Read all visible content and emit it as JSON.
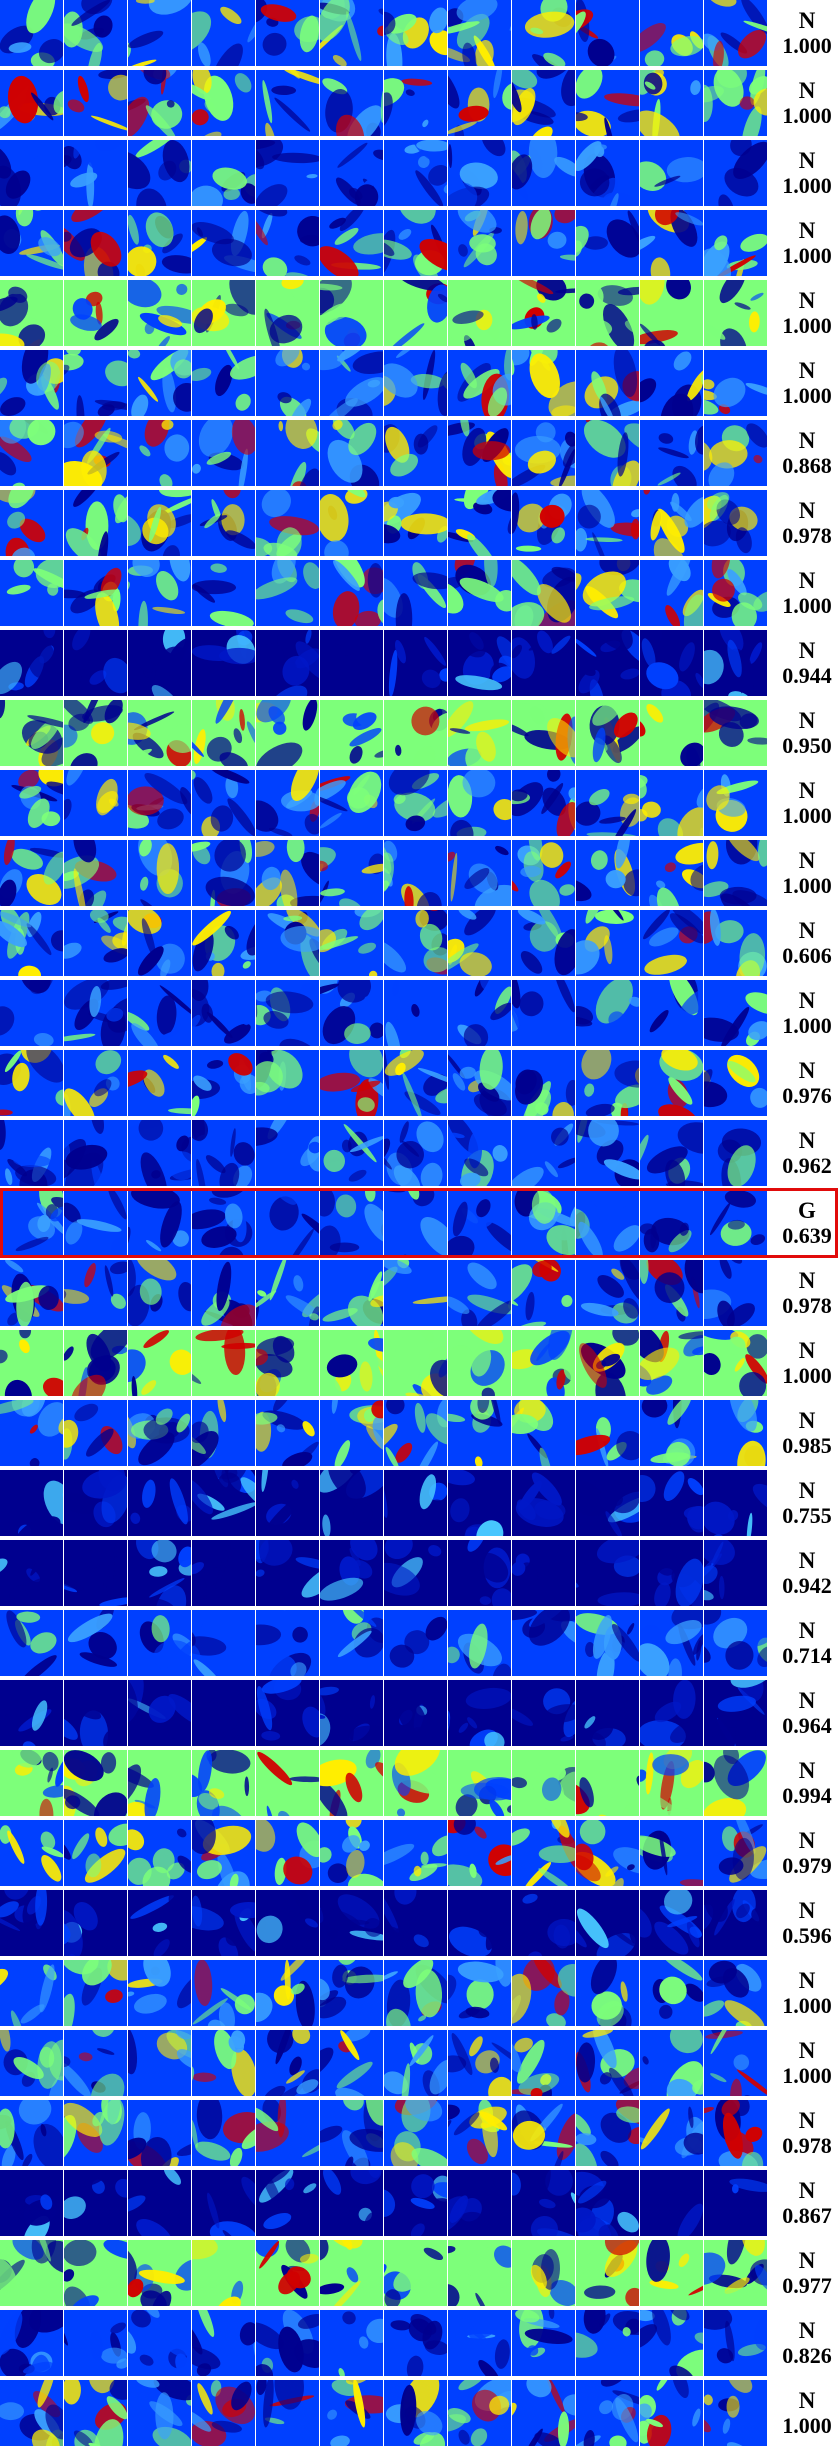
{
  "colormap": {
    "low": "#00008f",
    "mid_low": "#0040ff",
    "mid": "#7dff7a",
    "mid_high": "#ffee00",
    "high": "#d10000"
  },
  "highlight_color": "#e10b0b",
  "tiles_per_row": 12,
  "rows": [
    {
      "cls": "N",
      "score": "1.000",
      "pattern": "mixed",
      "highlighted": false
    },
    {
      "cls": "N",
      "score": "1.000",
      "pattern": "mixed",
      "highlighted": false
    },
    {
      "cls": "N",
      "score": "1.000",
      "pattern": "blue",
      "highlighted": false
    },
    {
      "cls": "N",
      "score": "1.000",
      "pattern": "mixed",
      "highlighted": false
    },
    {
      "cls": "N",
      "score": "1.000",
      "pattern": "green",
      "highlighted": false
    },
    {
      "cls": "N",
      "score": "1.000",
      "pattern": "mixed",
      "highlighted": false
    },
    {
      "cls": "N",
      "score": "0.868",
      "pattern": "mixed",
      "highlighted": false
    },
    {
      "cls": "N",
      "score": "0.978",
      "pattern": "mixed",
      "highlighted": false
    },
    {
      "cls": "N",
      "score": "1.000",
      "pattern": "mixed",
      "highlighted": false
    },
    {
      "cls": "N",
      "score": "0.944",
      "pattern": "dark",
      "highlighted": false
    },
    {
      "cls": "N",
      "score": "0.950",
      "pattern": "green",
      "highlighted": false
    },
    {
      "cls": "N",
      "score": "1.000",
      "pattern": "mixed",
      "highlighted": false
    },
    {
      "cls": "N",
      "score": "1.000",
      "pattern": "mixed",
      "highlighted": false
    },
    {
      "cls": "N",
      "score": "0.606",
      "pattern": "mixed",
      "highlighted": false
    },
    {
      "cls": "N",
      "score": "1.000",
      "pattern": "blue",
      "highlighted": false
    },
    {
      "cls": "N",
      "score": "0.976",
      "pattern": "mixed",
      "highlighted": false
    },
    {
      "cls": "N",
      "score": "0.962",
      "pattern": "blue",
      "highlighted": false
    },
    {
      "cls": "G",
      "score": "0.639",
      "pattern": "blue",
      "highlighted": true
    },
    {
      "cls": "N",
      "score": "0.978",
      "pattern": "mixed",
      "highlighted": false
    },
    {
      "cls": "N",
      "score": "1.000",
      "pattern": "green",
      "highlighted": false
    },
    {
      "cls": "N",
      "score": "0.985",
      "pattern": "mixed",
      "highlighted": false
    },
    {
      "cls": "N",
      "score": "0.755",
      "pattern": "dark",
      "highlighted": false
    },
    {
      "cls": "N",
      "score": "0.942",
      "pattern": "dark",
      "highlighted": false
    },
    {
      "cls": "N",
      "score": "0.714",
      "pattern": "blue",
      "highlighted": false
    },
    {
      "cls": "N",
      "score": "0.964",
      "pattern": "dark",
      "highlighted": false
    },
    {
      "cls": "N",
      "score": "0.994",
      "pattern": "green",
      "highlighted": false
    },
    {
      "cls": "N",
      "score": "0.979",
      "pattern": "mixed",
      "highlighted": false
    },
    {
      "cls": "N",
      "score": "0.596",
      "pattern": "dark",
      "highlighted": false
    },
    {
      "cls": "N",
      "score": "1.000",
      "pattern": "mixed",
      "highlighted": false
    },
    {
      "cls": "N",
      "score": "1.000",
      "pattern": "mixed",
      "highlighted": false
    },
    {
      "cls": "N",
      "score": "0.978",
      "pattern": "mixed",
      "highlighted": false
    },
    {
      "cls": "N",
      "score": "0.867",
      "pattern": "dark",
      "highlighted": false
    },
    {
      "cls": "N",
      "score": "0.977",
      "pattern": "green",
      "highlighted": false
    },
    {
      "cls": "N",
      "score": "0.826",
      "pattern": "blue",
      "highlighted": false
    },
    {
      "cls": "N",
      "score": "1.000",
      "pattern": "mixed",
      "highlighted": false
    }
  ]
}
